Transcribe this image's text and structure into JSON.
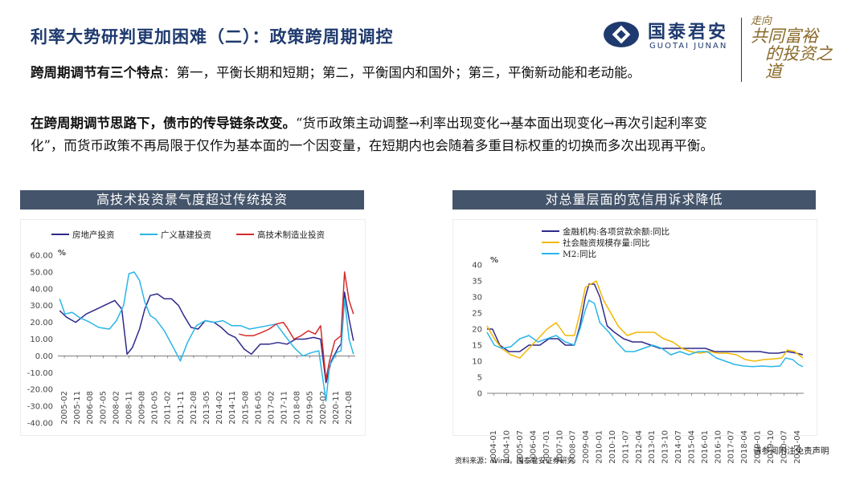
{
  "page": {
    "title": "利率大势研判更加困难（二）：政策跨周期调控",
    "logo_cn": "国泰君安",
    "logo_en": "GUOTAI JUNAN",
    "slogan_line1": "走向",
    "slogan_line2": "共同富裕",
    "slogan_line3": "的投资之道",
    "para1_bold": "跨周期调节有三个特点",
    "para1_text": "：第一，平衡长期和短期；第二，平衡国内和国外；第三，平衡新动能和老动能。",
    "para2_bold": "在跨周期调节思路下，债市的传导链条改变。",
    "para2_text": "“货币政策主动调整→利率出现变化→基本面出现变化→再次引起利率变化”，而货币政策不再局限于仅作为基本面的一个因变量，在短期内也会随着多重目标权重的切换而多次出现再平衡。",
    "source": "资料来源：Wind，国泰君安证券研究",
    "disclaimer": "请参阅附注免责声明"
  },
  "colors": {
    "navy": "#2e2a8c",
    "light_blue": "#2bb5e8",
    "red": "#d62a2a",
    "yellow": "#f2b705",
    "banner": "#44546a",
    "title": "#1f3a6e"
  },
  "chart_data": [
    {
      "type": "line",
      "title": "高技术投资景气度超过传统投资",
      "unit": "%",
      "ylim": [
        -40,
        60
      ],
      "yticks": [
        "60.00",
        "50.00",
        "40.00",
        "30.00",
        "20.00",
        "10.00",
        "0.00",
        "-10.00",
        "-20.00",
        "-30.00",
        "-40.00"
      ],
      "x_range": [
        2005.0,
        2021.75
      ],
      "xticks": [
        "2005-02",
        "2005-11",
        "2006-08",
        "2007-05",
        "2008-02",
        "2008-11",
        "2009-08",
        "2010-05",
        "2011-02",
        "2011-11",
        "2012-08",
        "2013-05",
        "2014-02",
        "2014-11",
        "2015-08",
        "2016-05",
        "2017-02",
        "2017-11",
        "2018-08",
        "2019-05",
        "2020-02",
        "2020-11",
        "2021-08"
      ],
      "series": [
        {
          "name": "房地产投资",
          "color": "#2e2a8c",
          "points": [
            [
              2005.1,
              27
            ],
            [
              2005.5,
              23
            ],
            [
              2006.0,
              20
            ],
            [
              2006.6,
              25
            ],
            [
              2007.2,
              28
            ],
            [
              2007.8,
              31
            ],
            [
              2008.2,
              33
            ],
            [
              2008.6,
              28
            ],
            [
              2008.9,
              1
            ],
            [
              2009.2,
              5
            ],
            [
              2009.6,
              16
            ],
            [
              2009.9,
              28
            ],
            [
              2010.2,
              36
            ],
            [
              2010.6,
              37
            ],
            [
              2011.0,
              34
            ],
            [
              2011.4,
              34
            ],
            [
              2011.8,
              30
            ],
            [
              2012.1,
              24
            ],
            [
              2012.5,
              17
            ],
            [
              2012.9,
              16
            ],
            [
              2013.3,
              21
            ],
            [
              2013.8,
              20
            ],
            [
              2014.2,
              17
            ],
            [
              2014.6,
              13
            ],
            [
              2015.0,
              11
            ],
            [
              2015.5,
              4
            ],
            [
              2015.9,
              1
            ],
            [
              2016.4,
              7
            ],
            [
              2016.9,
              7
            ],
            [
              2017.4,
              8
            ],
            [
              2017.9,
              7
            ],
            [
              2018.4,
              10
            ],
            [
              2018.9,
              10
            ],
            [
              2019.4,
              11
            ],
            [
              2019.8,
              10
            ],
            [
              2020.1,
              -16
            ],
            [
              2020.4,
              -3
            ],
            [
              2020.8,
              5
            ],
            [
              2020.95,
              7
            ],
            [
              2021.15,
              38
            ],
            [
              2021.4,
              22
            ],
            [
              2021.65,
              9
            ]
          ]
        },
        {
          "name": "广义基建投资",
          "color": "#2bb5e8",
          "points": [
            [
              2005.1,
              34
            ],
            [
              2005.4,
              25
            ],
            [
              2005.8,
              26
            ],
            [
              2006.2,
              23
            ],
            [
              2006.8,
              20
            ],
            [
              2007.3,
              17
            ],
            [
              2007.9,
              16
            ],
            [
              2008.3,
              21
            ],
            [
              2008.7,
              30
            ],
            [
              2009.0,
              49
            ],
            [
              2009.3,
              50
            ],
            [
              2009.6,
              45
            ],
            [
              2009.9,
              32
            ],
            [
              2010.2,
              24
            ],
            [
              2010.5,
              22
            ],
            [
              2011.0,
              15
            ],
            [
              2011.5,
              5
            ],
            [
              2011.9,
              -3
            ],
            [
              2012.3,
              8
            ],
            [
              2012.8,
              18
            ],
            [
              2013.3,
              21
            ],
            [
              2013.8,
              20
            ],
            [
              2014.3,
              21
            ],
            [
              2014.8,
              18
            ],
            [
              2015.3,
              18
            ],
            [
              2015.8,
              16
            ],
            [
              2016.3,
              17
            ],
            [
              2016.8,
              18
            ],
            [
              2017.3,
              19
            ],
            [
              2017.8,
              12
            ],
            [
              2018.3,
              5
            ],
            [
              2018.8,
              0
            ],
            [
              2019.3,
              2
            ],
            [
              2019.7,
              3
            ],
            [
              2020.1,
              -27
            ],
            [
              2020.3,
              -6
            ],
            [
              2020.7,
              2
            ],
            [
              2020.95,
              3
            ],
            [
              2021.15,
              34
            ],
            [
              2021.4,
              10
            ],
            [
              2021.65,
              1
            ]
          ]
        },
        {
          "name": "高技术制造业投资",
          "color": "#d62a2a",
          "points": [
            [
              2015.2,
              13
            ],
            [
              2015.6,
              12
            ],
            [
              2016.0,
              12
            ],
            [
              2016.5,
              14
            ],
            [
              2016.9,
              16
            ],
            [
              2017.3,
              19
            ],
            [
              2017.7,
              20
            ],
            [
              2017.9,
              17
            ],
            [
              2018.3,
              10
            ],
            [
              2018.7,
              12
            ],
            [
              2019.1,
              15
            ],
            [
              2019.5,
              13
            ],
            [
              2019.8,
              18
            ],
            [
              2020.1,
              -14
            ],
            [
              2020.3,
              -3
            ],
            [
              2020.6,
              9
            ],
            [
              2020.95,
              12
            ],
            [
              2021.15,
              50
            ],
            [
              2021.4,
              33
            ],
            [
              2021.65,
              25
            ]
          ]
        }
      ]
    },
    {
      "type": "line",
      "title": "对总量层面的宽信用诉求降低",
      "unit": "%",
      "ylim": [
        0,
        40
      ],
      "yticks": [
        "40",
        "35",
        "30",
        "25",
        "20",
        "15",
        "10",
        "5",
        "0"
      ],
      "x_range": [
        2004.0,
        2021.4
      ],
      "xticks": [
        "2004-01",
        "2004-10",
        "2005-07",
        "2006-04",
        "2007-01",
        "2007-10",
        "2008-07",
        "2009-04",
        "2010-01",
        "2010-10",
        "2011-07",
        "2012-04",
        "2013-01",
        "2013-10",
        "2014-07",
        "2015-04",
        "2016-01",
        "2016-10",
        "2017-07",
        "2018-04",
        "2019-01",
        "2019-10",
        "2020-07",
        "2021-04"
      ],
      "series": [
        {
          "name": "金融机构:各项贷款余额:同比",
          "color": "#2e2a8c",
          "points": [
            [
              2004.0,
              20
            ],
            [
              2004.3,
              20
            ],
            [
              2004.7,
              15
            ],
            [
              2005.2,
              13
            ],
            [
              2005.8,
              13
            ],
            [
              2006.3,
              15
            ],
            [
              2006.9,
              15
            ],
            [
              2007.4,
              17
            ],
            [
              2007.9,
              17
            ],
            [
              2008.3,
              15
            ],
            [
              2008.8,
              15
            ],
            [
              2009.1,
              21
            ],
            [
              2009.4,
              30
            ],
            [
              2009.6,
              34
            ],
            [
              2009.9,
              34
            ],
            [
              2010.2,
              30
            ],
            [
              2010.6,
              21
            ],
            [
              2011.0,
              19
            ],
            [
              2011.5,
              17
            ],
            [
              2012.0,
              16
            ],
            [
              2012.5,
              16
            ],
            [
              2013.0,
              15
            ],
            [
              2013.5,
              14
            ],
            [
              2014.0,
              14
            ],
            [
              2014.5,
              14
            ],
            [
              2015.0,
              14
            ],
            [
              2015.5,
              14
            ],
            [
              2016.0,
              14
            ],
            [
              2016.5,
              13
            ],
            [
              2017.0,
              13
            ],
            [
              2017.5,
              13
            ],
            [
              2018.0,
              13
            ],
            [
              2018.5,
              13
            ],
            [
              2019.0,
              13
            ],
            [
              2019.5,
              12.5
            ],
            [
              2020.0,
              12.5
            ],
            [
              2020.5,
              13
            ],
            [
              2021.0,
              12.5
            ],
            [
              2021.35,
              12
            ]
          ]
        },
        {
          "name": "社会融资规模存量:同比",
          "color": "#f2b705",
          "points": [
            [
              2004.0,
              21
            ],
            [
              2004.4,
              17
            ],
            [
              2004.8,
              14
            ],
            [
              2005.3,
              12
            ],
            [
              2005.8,
              11
            ],
            [
              2006.3,
              14
            ],
            [
              2006.8,
              17
            ],
            [
              2007.3,
              20
            ],
            [
              2007.8,
              22
            ],
            [
              2008.3,
              18
            ],
            [
              2008.8,
              18
            ],
            [
              2009.1,
              25
            ],
            [
              2009.4,
              33
            ],
            [
              2009.7,
              34
            ],
            [
              2010.0,
              35
            ],
            [
              2010.4,
              29
            ],
            [
              2010.8,
              25
            ],
            [
              2011.2,
              21
            ],
            [
              2011.7,
              18
            ],
            [
              2012.2,
              19
            ],
            [
              2012.7,
              19
            ],
            [
              2013.2,
              19
            ],
            [
              2013.7,
              17
            ],
            [
              2014.2,
              16
            ],
            [
              2014.7,
              14
            ],
            [
              2015.2,
              13
            ],
            [
              2015.7,
              12.5
            ],
            [
              2016.2,
              13
            ],
            [
              2016.7,
              12.5
            ],
            [
              2017.2,
              12.5
            ],
            [
              2017.7,
              12
            ],
            [
              2018.2,
              10.5
            ],
            [
              2018.7,
              10
            ],
            [
              2019.2,
              10.5
            ],
            [
              2019.7,
              10.7
            ],
            [
              2020.2,
              11
            ],
            [
              2020.5,
              13.5
            ],
            [
              2020.9,
              13
            ],
            [
              2021.35,
              11
            ]
          ]
        },
        {
          "name": "M2:同比",
          "color": "#2bb5e8",
          "points": [
            [
              2004.0,
              19
            ],
            [
              2004.4,
              15
            ],
            [
              2004.8,
              14
            ],
            [
              2005.3,
              14.5
            ],
            [
              2005.8,
              17
            ],
            [
              2006.3,
              18
            ],
            [
              2006.8,
              16
            ],
            [
              2007.3,
              17
            ],
            [
              2007.8,
              18
            ],
            [
              2008.3,
              16
            ],
            [
              2008.8,
              15
            ],
            [
              2009.1,
              20
            ],
            [
              2009.4,
              26
            ],
            [
              2009.6,
              29
            ],
            [
              2009.9,
              28
            ],
            [
              2010.2,
              22
            ],
            [
              2010.7,
              19
            ],
            [
              2011.1,
              16
            ],
            [
              2011.6,
              13
            ],
            [
              2012.1,
              13
            ],
            [
              2012.6,
              14
            ],
            [
              2013.1,
              15
            ],
            [
              2013.6,
              14
            ],
            [
              2014.1,
              12
            ],
            [
              2014.6,
              13
            ],
            [
              2015.1,
              12
            ],
            [
              2015.6,
              13
            ],
            [
              2016.1,
              13
            ],
            [
              2016.6,
              11
            ],
            [
              2017.1,
              10
            ],
            [
              2017.6,
              9
            ],
            [
              2018.1,
              8.5
            ],
            [
              2018.6,
              8.3
            ],
            [
              2019.1,
              8.5
            ],
            [
              2019.6,
              8.3
            ],
            [
              2020.1,
              8.5
            ],
            [
              2020.4,
              11
            ],
            [
              2020.8,
              10.5
            ],
            [
              2021.1,
              9
            ],
            [
              2021.35,
              8.3
            ]
          ]
        }
      ]
    }
  ]
}
